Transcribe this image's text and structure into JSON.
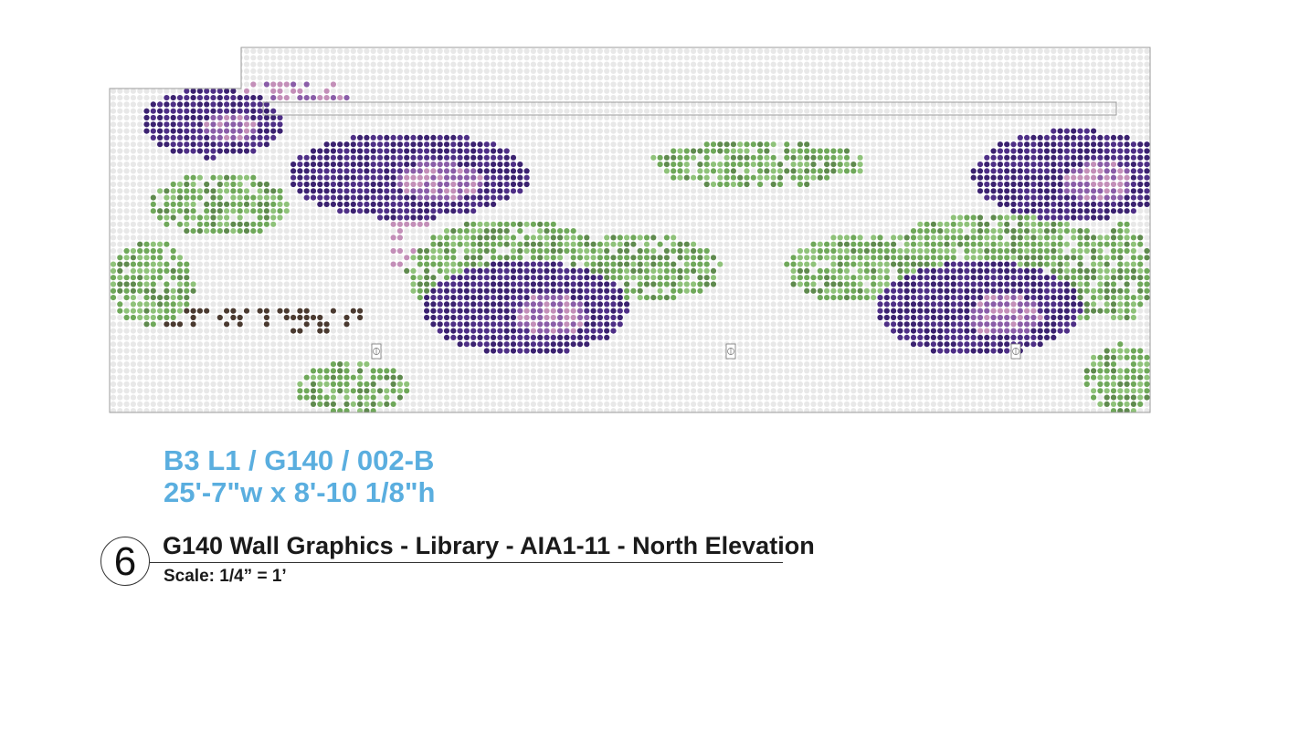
{
  "sheet": {
    "code_line": "B3 L1 / G140 / 002-B",
    "dimensions_line": "25'-7\"w x 8'-10 1/8\"h",
    "detail_number": "6",
    "title": "G140 Wall Graphics - Library - AIA1-11 - North Elevation",
    "scale": "Scale: 1/4” = 1’"
  },
  "artwork": {
    "description_icon": "dot-pattern-floral-mural",
    "colors": {
      "empty_dot": "#e8e8e8",
      "purple_dark": "#3b2270",
      "purple_mid": "#4e2f86",
      "purple_light": "#8a5da8",
      "pink": "#c38fb8",
      "green_light": "#8fc27a",
      "green_mid": "#6fa85a",
      "green_dark": "#5f8a4e",
      "brown": "#4a3a30",
      "outline": "#9a9a9a"
    },
    "icons": [
      "outlet-icon",
      "outlet-icon",
      "outlet-icon"
    ]
  }
}
